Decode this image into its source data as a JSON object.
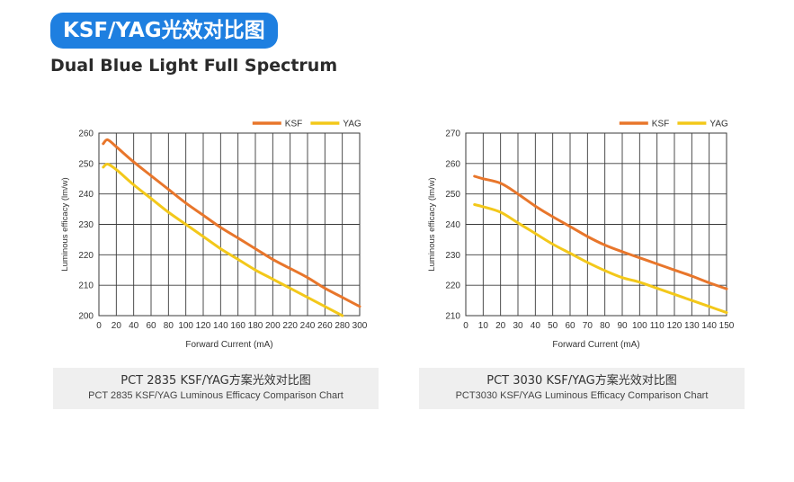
{
  "header": {
    "title": "KSF/YAG光效对比图",
    "subtitle": "Dual Blue Light Full Spectrum"
  },
  "chart_data": [
    {
      "type": "line",
      "xlabel": "Forward Current (mA)",
      "ylabel": "Luminous efficacy (lm/w)",
      "xlim": [
        0,
        300
      ],
      "ylim": [
        200,
        260
      ],
      "xticks": [
        0,
        20,
        40,
        60,
        80,
        100,
        120,
        140,
        160,
        180,
        200,
        220,
        240,
        260,
        280,
        300
      ],
      "yticks": [
        200,
        210,
        220,
        230,
        240,
        250,
        260
      ],
      "grid": true,
      "legend_position": "top-right",
      "series": [
        {
          "name": "KSF",
          "color": "#e8762b",
          "x": [
            5,
            10,
            20,
            40,
            60,
            80,
            100,
            120,
            140,
            160,
            180,
            200,
            220,
            240,
            260,
            280,
            300
          ],
          "y": [
            256.5,
            257.8,
            255.5,
            250.5,
            246,
            241.5,
            237,
            233,
            229,
            225.5,
            222,
            218.5,
            215.5,
            212.5,
            209,
            206,
            203
          ]
        },
        {
          "name": "YAG",
          "color": "#f3c81a",
          "x": [
            5,
            10,
            20,
            40,
            60,
            80,
            100,
            120,
            140,
            160,
            180,
            200,
            220,
            240,
            260,
            280
          ],
          "y": [
            248.8,
            249.8,
            248,
            243,
            238.5,
            234,
            230,
            226,
            222,
            218.5,
            215,
            212,
            209,
            206,
            203,
            200
          ]
        }
      ]
    },
    {
      "type": "line",
      "xlabel": "Forward Current (mA)",
      "ylabel": "Luminous efficacy (lm/w)",
      "xlim": [
        0,
        150
      ],
      "ylim": [
        210,
        270
      ],
      "xticks": [
        0,
        10,
        20,
        30,
        40,
        50,
        60,
        70,
        80,
        90,
        100,
        110,
        120,
        130,
        140,
        150
      ],
      "yticks": [
        210,
        220,
        230,
        240,
        250,
        260,
        270
      ],
      "grid": true,
      "legend_position": "top-right",
      "series": [
        {
          "name": "KSF",
          "color": "#e8762b",
          "x": [
            5,
            10,
            20,
            30,
            40,
            50,
            60,
            70,
            80,
            90,
            100,
            110,
            120,
            130,
            140,
            150
          ],
          "y": [
            255.8,
            255,
            253.5,
            250,
            246,
            242.5,
            239.3,
            236,
            233.2,
            231,
            229,
            227,
            225,
            223,
            220.8,
            218.8
          ]
        },
        {
          "name": "YAG",
          "color": "#f3c81a",
          "x": [
            5,
            10,
            20,
            30,
            40,
            50,
            60,
            70,
            80,
            90,
            100,
            110,
            120,
            130,
            140,
            150
          ],
          "y": [
            246.5,
            245.8,
            244,
            240.5,
            237,
            233.5,
            230.5,
            227.5,
            224.8,
            222.5,
            221,
            219,
            217,
            215,
            213,
            211
          ]
        }
      ]
    }
  ],
  "captions": [
    {
      "zh": "PCT 2835 KSF/YAG方案光效对比图",
      "en": "PCT 2835 KSF/YAG Luminous Efficacy Comparison Chart"
    },
    {
      "zh": "PCT 3030 KSF/YAG方案光效对比图",
      "en": "PCT3030 KSF/YAG Luminous Efficacy Comparison Chart"
    }
  ]
}
